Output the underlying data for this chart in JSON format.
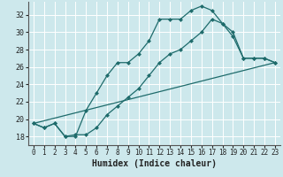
{
  "xlabel": "Humidex (Indice chaleur)",
  "bg_color": "#cde8ec",
  "line_color": "#1e6b6b",
  "grid_color": "#ffffff",
  "xlim": [
    -0.5,
    23.5
  ],
  "ylim": [
    17.0,
    33.5
  ],
  "yticks": [
    18,
    20,
    22,
    24,
    26,
    28,
    30,
    32
  ],
  "xticks": [
    0,
    1,
    2,
    3,
    4,
    5,
    6,
    7,
    8,
    9,
    10,
    11,
    12,
    13,
    14,
    15,
    16,
    17,
    18,
    19,
    20,
    21,
    22,
    23
  ],
  "line1_x": [
    0,
    1,
    2,
    3,
    4,
    5,
    6,
    7,
    8,
    9,
    10,
    11,
    12,
    13,
    14,
    15,
    16,
    17,
    18,
    19,
    20,
    21,
    22,
    23
  ],
  "line1_y": [
    19.5,
    19.0,
    19.5,
    18.0,
    18.0,
    21.0,
    23.0,
    25.0,
    26.5,
    26.5,
    27.5,
    29.0,
    31.5,
    31.5,
    31.5,
    32.5,
    33.0,
    32.5,
    31.0,
    30.0,
    27.0,
    27.0,
    27.0,
    26.5
  ],
  "line2_x": [
    0,
    1,
    2,
    3,
    4,
    5,
    6,
    7,
    8,
    9,
    10,
    11,
    12,
    13,
    14,
    15,
    16,
    17,
    18,
    19,
    20,
    21,
    22,
    23
  ],
  "line2_y": [
    19.5,
    19.0,
    19.5,
    18.0,
    18.2,
    18.2,
    19.0,
    20.5,
    21.5,
    22.5,
    23.5,
    25.0,
    26.5,
    27.5,
    28.0,
    29.0,
    30.0,
    31.5,
    31.0,
    29.5,
    27.0,
    27.0,
    27.0,
    26.5
  ],
  "line3_x": [
    0,
    23
  ],
  "line3_y": [
    19.5,
    26.5
  ],
  "marker_size": 2.5,
  "lw": 0.9,
  "xlabel_fontsize": 7,
  "tick_fontsize": 5.5
}
